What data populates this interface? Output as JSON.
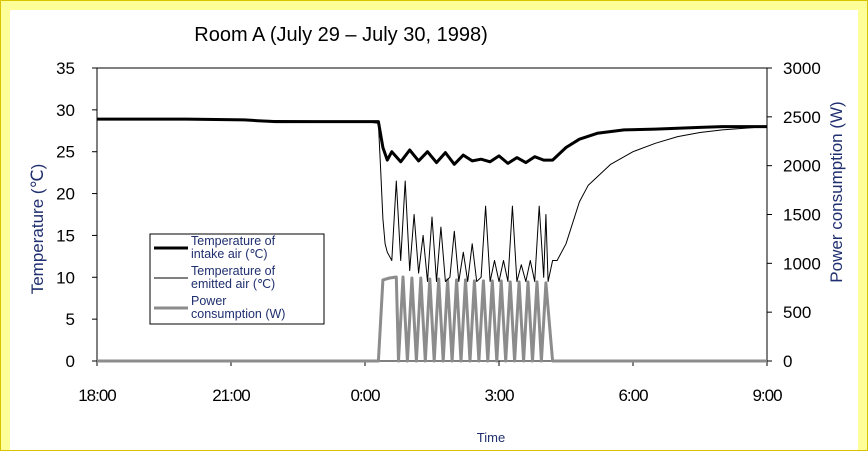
{
  "chart_data": {
    "type": "line",
    "title": "Room A (July 29 – July 30, 1998)",
    "xlabel": "Time",
    "ylabel_left": "Temperature (℃)",
    "ylabel_right": "Power consumption (W)",
    "x_unit": "hours since 18:00",
    "xlim": [
      0,
      15
    ],
    "x_ticks": [
      {
        "x": 0,
        "label": "18:00"
      },
      {
        "x": 3,
        "label": "21:00"
      },
      {
        "x": 6,
        "label": "0:00"
      },
      {
        "x": 9,
        "label": "3:00"
      },
      {
        "x": 12,
        "label": "6:00"
      },
      {
        "x": 15,
        "label": "9:00"
      }
    ],
    "ylim_left": [
      0,
      35
    ],
    "y_ticks_left": [
      0,
      5,
      10,
      15,
      20,
      25,
      30,
      35
    ],
    "ylim_right": [
      0,
      3000
    ],
    "y_ticks_right": [
      0,
      500,
      1000,
      1500,
      2000,
      2500,
      3000
    ],
    "grid": false,
    "legend_position": "lower-left",
    "series": [
      {
        "name": "Temperature of intake air (℃)",
        "axis": "left",
        "color": "#000000",
        "x": [
          0,
          2.0,
          3.3,
          3.6,
          4.0,
          5.0,
          6.0,
          6.3,
          6.4,
          6.5,
          6.6,
          6.8,
          7.0,
          7.2,
          7.4,
          7.6,
          7.8,
          8.0,
          8.2,
          8.4,
          8.6,
          8.8,
          9.0,
          9.2,
          9.4,
          9.6,
          9.8,
          10.0,
          10.2,
          10.5,
          10.8,
          11.2,
          11.8,
          12.5,
          13.0,
          13.5,
          14.0,
          14.5,
          15
        ],
        "y": [
          28.9,
          28.9,
          28.8,
          28.7,
          28.6,
          28.6,
          28.6,
          28.6,
          25.5,
          24.0,
          25.0,
          23.8,
          25.2,
          23.9,
          25.0,
          23.7,
          24.9,
          23.5,
          24.6,
          23.9,
          24.1,
          23.8,
          24.5,
          23.6,
          24.3,
          23.7,
          24.4,
          24.0,
          24.0,
          25.5,
          26.5,
          27.2,
          27.6,
          27.7,
          27.8,
          27.9,
          28.0,
          28.0,
          28.0
        ]
      },
      {
        "name": "Temperature of emitted air (℃)",
        "axis": "left",
        "color": "#000000",
        "x": [
          0,
          3.0,
          6.0,
          6.3,
          6.35,
          6.4,
          6.45,
          6.5,
          6.6,
          6.7,
          6.8,
          6.9,
          7.0,
          7.1,
          7.2,
          7.3,
          7.4,
          7.5,
          7.6,
          7.7,
          7.8,
          7.9,
          8.0,
          8.1,
          8.2,
          8.3,
          8.4,
          8.5,
          8.6,
          8.7,
          8.8,
          8.9,
          9.0,
          9.1,
          9.2,
          9.3,
          9.4,
          9.5,
          9.6,
          9.7,
          9.8,
          9.9,
          10.0,
          10.05,
          10.1,
          10.2,
          10.3,
          10.5,
          10.8,
          11.0,
          11.5,
          12.0,
          12.5,
          13.0,
          13.5,
          14.0,
          15
        ],
        "y": [
          28.8,
          28.8,
          28.6,
          28.4,
          23.0,
          17.0,
          14.0,
          13.0,
          12.0,
          21.5,
          12.0,
          21.5,
          10.8,
          17.5,
          10.5,
          15.0,
          9.5,
          17.2,
          9.5,
          16.0,
          9.5,
          10.0,
          15.5,
          9.5,
          13.0,
          9.5,
          14.0,
          9.5,
          10.0,
          18.5,
          9.5,
          12.0,
          9.5,
          12.0,
          9.5,
          18.5,
          9.5,
          11.5,
          9.5,
          12.0,
          9.5,
          18.5,
          10.0,
          17.5,
          9.5,
          12.0,
          12.0,
          14.0,
          19.0,
          21.0,
          23.5,
          25.0,
          26.0,
          26.8,
          27.3,
          27.6,
          28.0
        ]
      },
      {
        "name": "Power consumption (W)",
        "axis": "right",
        "color": "#8c8c8c",
        "x": [
          0,
          6.3,
          6.4,
          6.55,
          6.7,
          6.75,
          6.85,
          6.95,
          7.05,
          7.15,
          7.25,
          7.35,
          7.45,
          7.55,
          7.65,
          7.75,
          7.85,
          7.95,
          8.05,
          8.15,
          8.25,
          8.35,
          8.45,
          8.55,
          8.65,
          8.75,
          8.85,
          8.95,
          9.05,
          9.15,
          9.25,
          9.35,
          9.45,
          9.55,
          9.65,
          9.75,
          9.85,
          9.95,
          10.05,
          10.2,
          15
        ],
        "y": [
          0,
          0,
          830,
          850,
          860,
          0,
          860,
          0,
          850,
          0,
          850,
          0,
          840,
          0,
          840,
          0,
          830,
          0,
          830,
          0,
          830,
          0,
          820,
          0,
          820,
          0,
          820,
          0,
          820,
          0,
          810,
          0,
          810,
          0,
          810,
          0,
          810,
          0,
          800,
          0,
          0
        ]
      }
    ]
  }
}
